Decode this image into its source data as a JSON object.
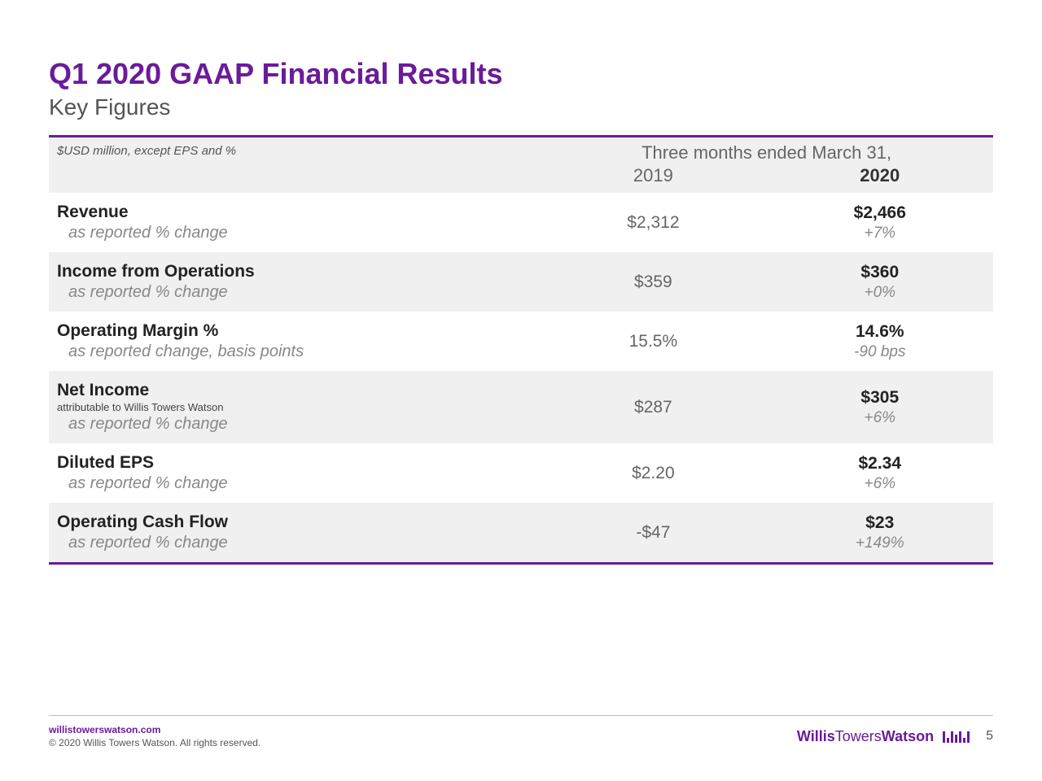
{
  "title": "Q1 2020 GAAP Financial Results",
  "subtitle": "Key Figures",
  "header": {
    "note": "$USD million, except EPS and %",
    "period": "Three months ended March 31,",
    "year1": "2019",
    "year2": "2020"
  },
  "rows": [
    {
      "metric": "Revenue",
      "sub": "",
      "change_label": "as reported % change",
      "v19": "$2,312",
      "v20": "$2,466",
      "chg": "+7%",
      "alt": false
    },
    {
      "metric": "Income from Operations",
      "sub": "",
      "change_label": "as reported % change",
      "v19": "$359",
      "v20": "$360",
      "chg": "+0%",
      "alt": true
    },
    {
      "metric": "Operating Margin %",
      "sub": "",
      "change_label": "as reported change, basis points",
      "v19": "15.5%",
      "v20": "14.6%",
      "chg": "-90 bps",
      "alt": false
    },
    {
      "metric": "Net Income",
      "sub": "attributable to Willis Towers Watson",
      "change_label": "as reported % change",
      "v19": "$287",
      "v20": "$305",
      "chg": "+6%",
      "alt": true
    },
    {
      "metric": "Diluted EPS",
      "sub": "",
      "change_label": "as reported % change",
      "v19": "$2.20",
      "v20": "$2.34",
      "chg": "+6%",
      "alt": false
    },
    {
      "metric": "Operating Cash Flow",
      "sub": "",
      "change_label": "as reported % change",
      "v19": "-$47",
      "v20": "$23",
      "chg": "+149%",
      "alt": true
    }
  ],
  "footer": {
    "url": "willistowerswatson.com",
    "copyright": "© 2020 Willis Towers Watson. All rights reserved.",
    "brand1": "Willis",
    "brand2": "Towers",
    "brand3": "Watson",
    "page": "5"
  },
  "colors": {
    "accent": "#6a1b9a",
    "alt_bg": "#f0f0f0",
    "text_muted": "#888888"
  }
}
